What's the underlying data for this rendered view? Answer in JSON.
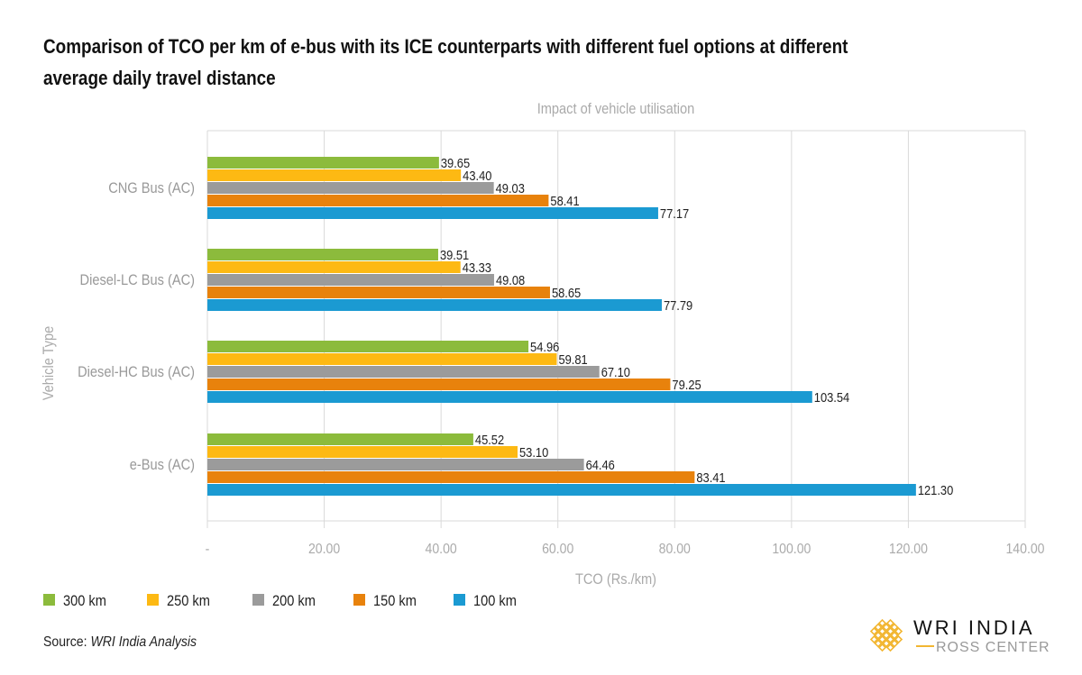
{
  "chart_data": {
    "type": "bar",
    "orientation": "horizontal",
    "title": "Comparison of TCO per km of e-bus with its ICE counterparts with different fuel options at different average daily travel distance",
    "subtitle": "Impact of vehicle utilisation",
    "xlabel": "TCO (Rs./km)",
    "ylabel": "Vehicle Type",
    "xlim": [
      0,
      140
    ],
    "xticks": [
      "-",
      "20.00",
      "40.00",
      "60.00",
      "80.00",
      "100.00",
      "120.00",
      "140.00"
    ],
    "grid": true,
    "legend_position": "bottom-left",
    "categories": [
      "CNG Bus (AC)",
      "Diesel-LC Bus (AC)",
      "Diesel-HC Bus (AC)",
      "e-Bus (AC)"
    ],
    "series": [
      {
        "name": "300 km",
        "color": "#8cbb3c",
        "values": [
          39.65,
          39.51,
          54.96,
          45.52
        ],
        "labels": [
          "39.65",
          "39.51",
          "54.96",
          "45.52"
        ]
      },
      {
        "name": "250 km",
        "color": "#fdb913",
        "values": [
          43.4,
          43.33,
          59.81,
          53.1
        ],
        "labels": [
          "43.40",
          "43.33",
          "59.81",
          "53.10"
        ]
      },
      {
        "name": "200 km",
        "color": "#9b9b9b",
        "values": [
          49.03,
          49.08,
          67.1,
          64.46
        ],
        "labels": [
          "49.03",
          "49.08",
          "67.10",
          "64.46"
        ]
      },
      {
        "name": "150 km",
        "color": "#e8820c",
        "values": [
          58.41,
          58.65,
          79.25,
          83.41
        ],
        "labels": [
          "58.41",
          "58.65",
          "79.25",
          "83.41"
        ]
      },
      {
        "name": "100 km",
        "color": "#1b9ad2",
        "values": [
          77.17,
          77.79,
          103.54,
          121.3
        ],
        "labels": [
          "77.17",
          "77.79",
          "103.54",
          "121.30"
        ]
      }
    ]
  },
  "source": {
    "label": "Source:",
    "value": "WRI India Analysis"
  },
  "logo": {
    "line1": "WRI INDIA",
    "line2": "ROSS CENTER"
  }
}
